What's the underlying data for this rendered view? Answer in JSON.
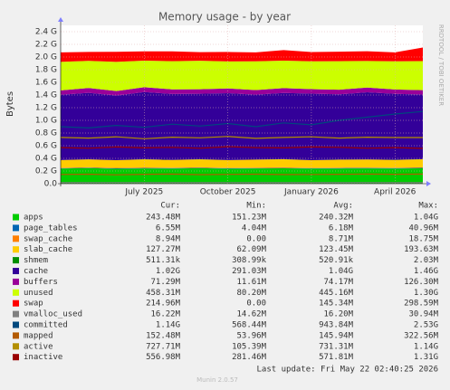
{
  "chart_data": {
    "type": "area",
    "title": "Memory usage - by year",
    "y_label": "Bytes",
    "side_label": "RRDTOOL / TOBI OETIKER",
    "x": [
      "2025-04",
      "2025-05",
      "2025-06",
      "2025-07",
      "2025-08",
      "2025-09",
      "2025-10",
      "2025-11",
      "2025-12",
      "2026-01",
      "2026-02",
      "2026-03",
      "2026-04",
      "2026-05"
    ],
    "xlim": [
      "2025-04",
      "2026-05"
    ],
    "xticks": [
      {
        "value": "2025-07",
        "label": "July 2025"
      },
      {
        "value": "2025-10",
        "label": "October 2025"
      },
      {
        "value": "2026-01",
        "label": "January 2026"
      },
      {
        "value": "2026-04",
        "label": "April 2026"
      }
    ],
    "ylim": [
      0,
      2500000000
    ],
    "yticks": [
      {
        "value": 0,
        "label": "0.0"
      },
      {
        "value": 200000000,
        "label": "0.2 G"
      },
      {
        "value": 400000000,
        "label": "0.4 G"
      },
      {
        "value": 600000000,
        "label": "0.6 G"
      },
      {
        "value": 800000000,
        "label": "0.8 G"
      },
      {
        "value": 1000000000,
        "label": "1.0 G"
      },
      {
        "value": 1200000000,
        "label": "1.2 G"
      },
      {
        "value": 1400000000,
        "label": "1.4 G"
      },
      {
        "value": 1600000000,
        "label": "1.6 G"
      },
      {
        "value": 1800000000,
        "label": "1.8 G"
      },
      {
        "value": 2000000000,
        "label": "2.0 G"
      },
      {
        "value": 2200000000,
        "label": "2.2 G"
      },
      {
        "value": 2400000000,
        "label": "2.4 G"
      }
    ],
    "grid": true,
    "legend_headers": [
      "Cur:",
      "Min:",
      "Avg:",
      "Max:"
    ],
    "series": [
      {
        "name": "apps",
        "color": "#00cc00",
        "draw": "stack",
        "cur": "243.48M",
        "min": "151.23M",
        "avg": "240.32M",
        "max": "1.04G",
        "values": [
          238000000,
          245000000,
          236000000,
          242000000,
          239000000,
          244000000,
          237000000,
          241000000,
          243000000,
          238000000,
          240000000,
          242000000,
          239000000,
          243000000
        ]
      },
      {
        "name": "page_tables",
        "color": "#0066b3",
        "draw": "stack",
        "cur": "6.55M",
        "min": "4.04M",
        "avg": "6.18M",
        "max": "40.96M",
        "values": [
          6000000,
          6000000,
          7000000,
          6000000,
          6000000,
          6000000,
          7000000,
          6000000,
          6000000,
          6000000,
          7000000,
          6000000,
          6000000,
          7000000
        ]
      },
      {
        "name": "swap_cache",
        "color": "#ff8000",
        "draw": "stack",
        "cur": "8.94M",
        "min": "0.00",
        "avg": "8.71M",
        "max": "18.75M",
        "values": [
          9000000,
          8000000,
          10000000,
          9000000,
          8000000,
          9000000,
          8000000,
          9000000,
          10000000,
          8000000,
          9000000,
          8000000,
          9000000,
          9000000
        ]
      },
      {
        "name": "slab_cache",
        "color": "#ffcc00",
        "draw": "stack",
        "cur": "127.27M",
        "min": "62.09M",
        "avg": "123.45M",
        "max": "193.63M",
        "values": [
          120000000,
          125000000,
          118000000,
          128000000,
          122000000,
          126000000,
          121000000,
          124000000,
          127000000,
          119000000,
          123000000,
          126000000,
          122000000,
          127000000
        ]
      },
      {
        "name": "shmem",
        "color": "#008f00",
        "draw": "stack",
        "cur": "511.31k",
        "min": "308.99k",
        "avg": "520.91k",
        "max": "2.03M",
        "values": [
          510000,
          520000,
          500000,
          530000,
          515000,
          525000,
          505000,
          520000,
          510000,
          530000,
          515000,
          520000,
          525000,
          511000
        ]
      },
      {
        "name": "cache",
        "color": "#330099",
        "draw": "stack",
        "cur": "1.02G",
        "min": "291.03M",
        "avg": "1.04G",
        "max": "1.46G",
        "values": [
          1030000000,
          1050000000,
          1020000000,
          1060000000,
          1040000000,
          1035000000,
          1055000000,
          1025000000,
          1045000000,
          1050000000,
          1030000000,
          1060000000,
          1040000000,
          1020000000
        ]
      },
      {
        "name": "buffers",
        "color": "#990099",
        "draw": "stack",
        "cur": "71.29M",
        "min": "11.61M",
        "avg": "74.17M",
        "max": "126.30M",
        "values": [
          70000000,
          75000000,
          72000000,
          78000000,
          74000000,
          71000000,
          76000000,
          73000000,
          77000000,
          72000000,
          75000000,
          74000000,
          71000000,
          71000000
        ]
      },
      {
        "name": "unused",
        "color": "#ccff00",
        "draw": "stack",
        "cur": "458.31M",
        "min": "80.20M",
        "avg": "445.16M",
        "max": "1.30G",
        "values": [
          450000000,
          430000000,
          460000000,
          420000000,
          445000000,
          450000000,
          425000000,
          455000000,
          435000000,
          440000000,
          450000000,
          420000000,
          445000000,
          458000000
        ]
      },
      {
        "name": "swap",
        "color": "#ff0000",
        "draw": "stack",
        "cur": "214.96M",
        "min": "0.00",
        "avg": "145.34M",
        "max": "298.59M",
        "values": [
          150000000,
          140000000,
          160000000,
          145000000,
          155000000,
          135000000,
          150000000,
          140000000,
          165000000,
          145000000,
          150000000,
          155000000,
          140000000,
          215000000
        ]
      },
      {
        "name": "vmalloc_used",
        "color": "#808080",
        "draw": "line",
        "cur": "16.22M",
        "min": "14.62M",
        "avg": "16.20M",
        "max": "30.94M",
        "values": [
          16000000,
          16000000,
          17000000,
          16000000,
          16000000,
          16000000,
          17000000,
          16000000,
          16000000,
          16000000,
          16000000,
          17000000,
          16000000,
          16000000
        ]
      },
      {
        "name": "committed",
        "color": "#00487d",
        "draw": "line",
        "cur": "1.14G",
        "min": "568.44M",
        "avg": "943.84M",
        "max": "2.53G",
        "values": [
          900000000,
          880000000,
          920000000,
          890000000,
          940000000,
          910000000,
          950000000,
          900000000,
          960000000,
          930000000,
          1000000000,
          1050000000,
          1100000000,
          1140000000
        ]
      },
      {
        "name": "mapped",
        "color": "#b35a00",
        "draw": "line",
        "cur": "152.48M",
        "min": "53.96M",
        "avg": "145.94M",
        "max": "322.56M",
        "values": [
          145000000,
          150000000,
          140000000,
          148000000,
          152000000,
          143000000,
          147000000,
          150000000,
          144000000,
          146000000,
          149000000,
          151000000,
          148000000,
          152000000
        ]
      },
      {
        "name": "active",
        "color": "#b38f00",
        "draw": "line",
        "cur": "727.71M",
        "min": "105.39M",
        "avg": "731.31M",
        "max": "1.14G",
        "values": [
          730000000,
          720000000,
          740000000,
          710000000,
          735000000,
          725000000,
          745000000,
          715000000,
          730000000,
          740000000,
          720000000,
          735000000,
          728000000,
          728000000
        ]
      },
      {
        "name": "inactive",
        "color": "#990000",
        "draw": "line",
        "cur": "556.98M",
        "min": "281.46M",
        "avg": "571.81M",
        "max": "1.31G",
        "values": [
          570000000,
          560000000,
          580000000,
          565000000,
          575000000,
          560000000,
          585000000,
          570000000,
          565000000,
          580000000,
          575000000,
          560000000,
          570000000,
          557000000
        ]
      }
    ],
    "last_update": "Last update: Fri May 22 02:40:25 2026",
    "version": "Munin 2.0.57"
  }
}
